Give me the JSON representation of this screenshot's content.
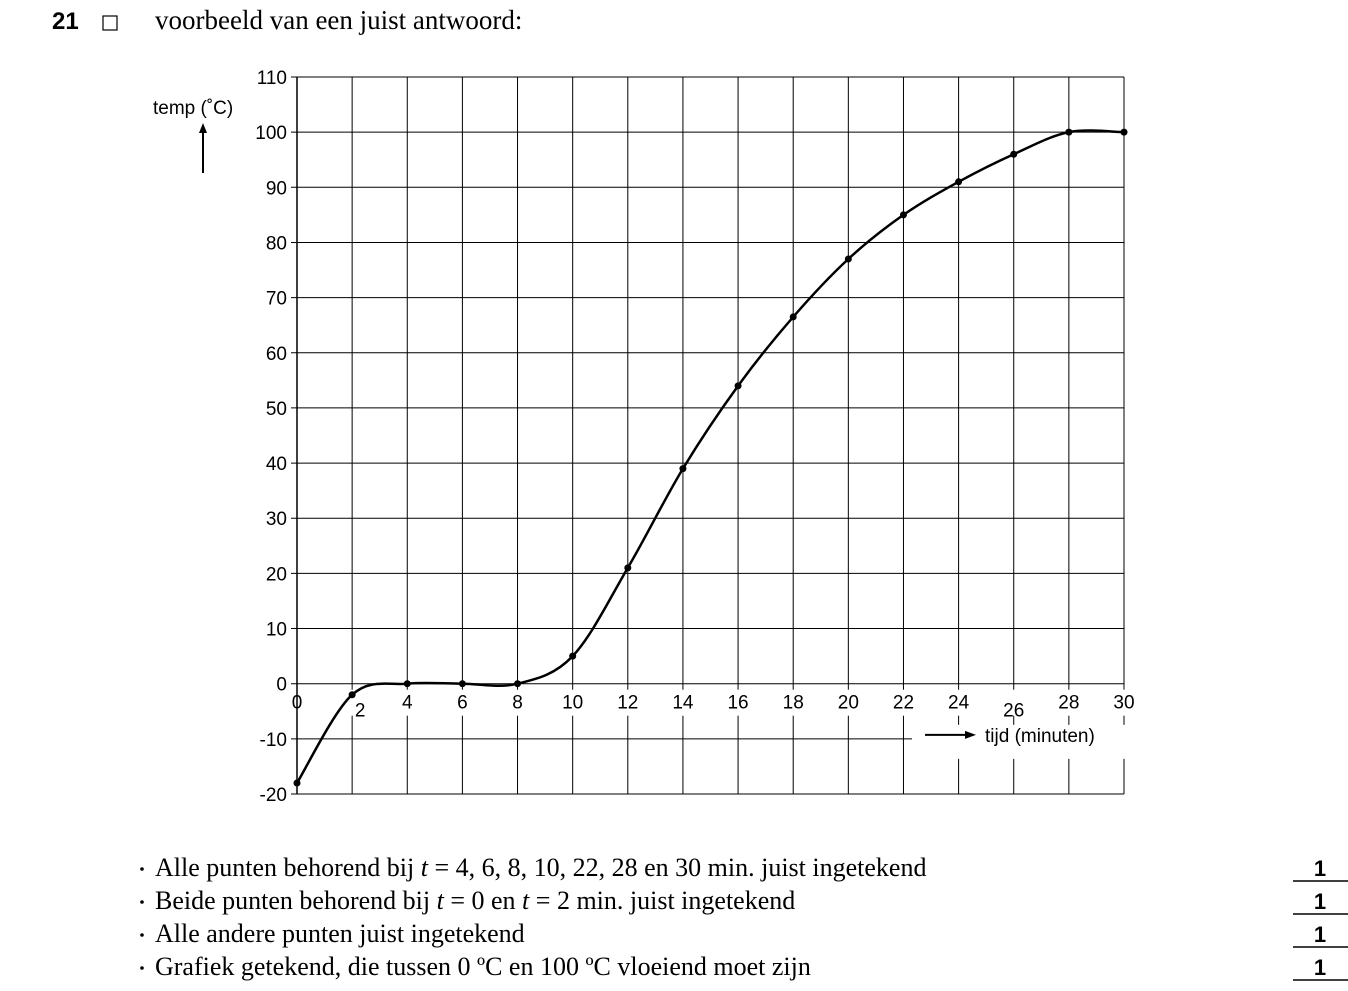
{
  "header": {
    "number": "21",
    "intro": "voorbeeld van een juist antwoord:"
  },
  "chart_data": {
    "type": "line",
    "y_label": "temp (˚C)",
    "x_label": "tijd (minuten)",
    "x": [
      0,
      2,
      4,
      6,
      8,
      10,
      12,
      14,
      16,
      18,
      20,
      22,
      24,
      26,
      28,
      30
    ],
    "values": [
      -18,
      -2,
      0,
      0,
      0,
      5,
      21,
      39,
      54,
      66.5,
      77,
      85,
      91,
      96,
      100,
      100
    ],
    "color": "#000000",
    "xlim": [
      0,
      30
    ],
    "xticks": [
      0,
      2,
      4,
      6,
      8,
      10,
      12,
      14,
      16,
      18,
      20,
      22,
      24,
      26,
      28,
      30
    ],
    "ylim": [
      -20,
      110
    ],
    "yticks": [
      -20,
      -10,
      0,
      10,
      20,
      30,
      40,
      50,
      60,
      70,
      80,
      90,
      100,
      110
    ],
    "grid": true
  },
  "items": [
    {
      "parts": [
        "Alle punten behorend bij ",
        "t",
        " = 4, 6, 8, 10, 22, 28 en 30 min. juist ingetekend"
      ],
      "score": "1"
    },
    {
      "parts": [
        "Beide punten behorend bij ",
        "t",
        " = 0 en ",
        "t",
        " = 2 min. juist ingetekend"
      ],
      "score": "1"
    },
    {
      "parts": [
        "Alle andere punten juist ingetekend"
      ],
      "score": "1"
    },
    {
      "parts": [
        "Grafiek getekend, die tussen 0 ºC en 100 ºC vloeiend moet zijn"
      ],
      "score": "1"
    }
  ]
}
